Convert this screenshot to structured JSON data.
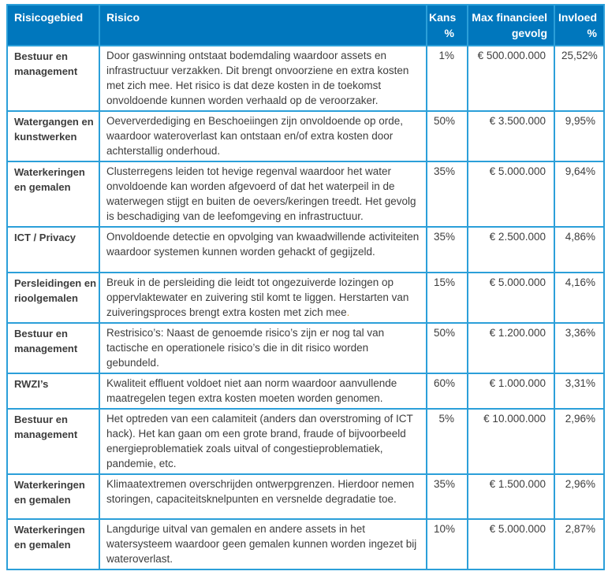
{
  "colors": {
    "header_bg": "#0077BD",
    "border": "#2B9FD9",
    "text": "#3D3D3D",
    "header_text": "#FFFFFF",
    "highlight_period": "#DCA02D"
  },
  "table": {
    "columns": [
      {
        "label": "Risicogebied",
        "align": "left"
      },
      {
        "label": "Risico",
        "align": "left"
      },
      {
        "label": "Kans\n%",
        "align": "right"
      },
      {
        "label": "Max financieel\ngevolg",
        "align": "right"
      },
      {
        "label": "Invloed\n%",
        "align": "right"
      }
    ],
    "rows": [
      {
        "gebied": "Bestuur en management",
        "risico": "Door gaswinning ontstaat bodemdaling waardoor assets en infrastructuur verzakken. Dit brengt onvoorziene en extra kosten met zich mee. Het risico is dat deze kosten in de toekomst onvoldoende kunnen worden verhaald op de veroorzaker.",
        "kans": "1%",
        "gevolg": "€ 500.000.000",
        "invloed": "25,52%"
      },
      {
        "gebied": "Watergangen en kunstwerken",
        "risico": "Oeververdediging en Beschoeiingen zijn onvoldoende op orde, waardoor wateroverlast kan ontstaan en/of extra kosten door achterstallig onderhoud.",
        "kans": "50%",
        "gevolg": "€ 3.500.000",
        "invloed": "9,95%"
      },
      {
        "gebied": "Waterkeringen en gemalen",
        "risico": "Clusterregens leiden tot hevige regenval waardoor het water onvoldoende kan worden afgevoerd of dat het waterpeil in de waterwegen stijgt en buiten de oevers/keringen treedt. Het gevolg is beschadiging van de leefomgeving en infrastructuur.",
        "kans": "35%",
        "gevolg": "€ 5.000.000",
        "invloed": "9,64%"
      },
      {
        "gebied": "ICT / Privacy",
        "risico": "Onvoldoende detectie en opvolging van kwaadwillende activiteiten waardoor systemen kunnen worden gehackt of gegijzeld.",
        "kans": "35%",
        "gevolg": "€ 2.500.000",
        "invloed": "4,86%"
      },
      {
        "gebied": "Persleidingen en rioolgemalen",
        "risico": "Breuk in de persleiding die leidt tot ongezuiverde lozingen op oppervlaktewater en zuivering stil komt te liggen. Herstarten van zuiveringsproces brengt extra kosten met zich mee",
        "risico_suffix": {
          "text": ".",
          "color": "#DCA02D"
        },
        "kans": "15%",
        "gevolg": "€ 5.000.000",
        "invloed": "4,16%"
      },
      {
        "gebied": "Bestuur en management",
        "risico": "Restrisico’s: Naast de genoemde risico’s zijn er nog tal van tactische en operationele risico’s die in dit risico worden gebundeld.",
        "kans": "50%",
        "gevolg": "€ 1.200.000",
        "invloed": "3,36%"
      },
      {
        "gebied": "RWZI’s",
        "risico": "Kwaliteit effluent voldoet niet aan norm waardoor aanvullende maatregelen tegen extra kosten moeten worden genomen.",
        "kans": "60%",
        "gevolg": "€ 1.000.000",
        "invloed": "3,31%"
      },
      {
        "gebied": "Bestuur en management",
        "risico": "Het optreden van een calamiteit (anders dan overstroming of ICT hack). Het kan gaan om een grote brand, fraude of bijvoorbeeld energieproblematiek zoals uitval of congestieproblematiek, pandemie, etc.",
        "kans": "5%",
        "gevolg": "€ 10.000.000",
        "invloed": "2,96%"
      },
      {
        "gebied": "Waterkeringen en gemalen",
        "risico": "Klimaatextremen overschrijden ontwerpgrenzen. Hierdoor nemen storingen, capaciteitsknelpunten en versnelde degradatie toe.",
        "kans": "35%",
        "gevolg": "€ 1.500.000",
        "invloed": "2,96%"
      },
      {
        "gebied": "Waterkeringen en gemalen",
        "risico": "Langdurige uitval van gemalen en andere assets in het watersysteem waardoor geen gemalen kunnen worden ingezet bij wateroverlast.",
        "kans": "10%",
        "gevolg": "€ 5.000.000",
        "invloed": "2,87%"
      }
    ]
  }
}
